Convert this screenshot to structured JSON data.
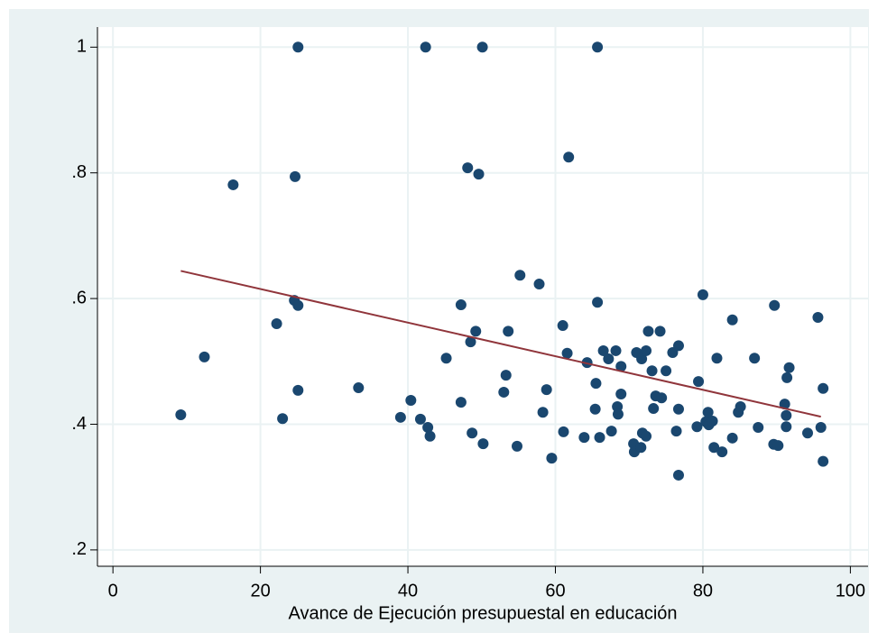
{
  "chart_data": {
    "type": "scatter",
    "x_label": "Avance de Ejecución presupuestal en educación",
    "xlim": [
      -2.1,
      102.4
    ],
    "ylim": [
      0.174,
      1.032
    ],
    "xticks": [
      0,
      20,
      40,
      60,
      80,
      100
    ],
    "yticks": [
      {
        "value": 0.2,
        "label": ".2"
      },
      {
        "value": 0.4,
        "label": ".4"
      },
      {
        "value": 0.6,
        "label": ".6"
      },
      {
        "value": 0.8,
        "label": ".8"
      },
      1
    ],
    "grid": true,
    "series": [
      {
        "type": "scatter",
        "color": "#1a476f",
        "x": [
          9.2,
          12.4,
          16.3,
          22.2,
          23.0,
          24.6,
          24.7,
          25.1,
          25.1,
          25.1,
          33.3,
          39.0,
          40.4,
          41.7,
          42.4,
          42.7,
          43.0,
          45.2,
          47.2,
          47.2,
          48.1,
          48.5,
          48.7,
          49.2,
          49.6,
          50.1,
          50.2,
          53.0,
          53.3,
          53.6,
          54.8,
          55.2,
          57.8,
          58.3,
          58.8,
          59.5,
          61.0,
          61.1,
          61.6,
          61.8,
          63.9,
          64.3,
          65.4,
          65.5,
          65.7,
          65.7,
          66.0,
          66.5,
          67.2,
          67.6,
          68.2,
          68.4,
          68.5,
          68.9,
          68.9,
          70.6,
          70.7,
          71.0,
          71.6,
          71.7,
          71.8,
          72.3,
          72.3,
          72.6,
          73.1,
          73.3,
          73.6,
          74.2,
          74.4,
          75.0,
          75.9,
          76.4,
          76.7,
          76.7,
          76.7,
          79.4,
          79.2,
          80.0,
          80.4,
          80.7,
          80.8,
          81.3,
          81.5,
          81.9,
          82.6,
          84.0,
          84.0,
          84.8,
          85.1,
          87.0,
          87.5,
          89.6,
          89.7,
          90.2,
          91.1,
          91.3,
          91.3,
          91.4,
          91.7,
          94.2,
          95.6,
          96.0,
          96.3,
          96.3
        ],
        "values": [
          0.415,
          0.507,
          0.781,
          0.56,
          0.409,
          0.597,
          0.794,
          1.0,
          0.589,
          0.454,
          0.458,
          0.411,
          0.438,
          0.408,
          1.0,
          0.395,
          0.381,
          0.505,
          0.59,
          0.435,
          0.808,
          0.531,
          0.386,
          0.548,
          0.798,
          1.0,
          0.369,
          0.451,
          0.478,
          0.548,
          0.365,
          0.637,
          0.623,
          0.419,
          0.455,
          0.346,
          0.557,
          0.388,
          0.513,
          0.825,
          0.379,
          0.498,
          0.424,
          0.465,
          1.0,
          0.594,
          0.379,
          0.517,
          0.504,
          0.389,
          0.517,
          0.428,
          0.416,
          0.448,
          0.492,
          0.369,
          0.356,
          0.514,
          0.363,
          0.504,
          0.386,
          0.517,
          0.381,
          0.548,
          0.485,
          0.425,
          0.445,
          0.548,
          0.442,
          0.485,
          0.514,
          0.389,
          0.525,
          0.424,
          0.319,
          0.468,
          0.396,
          0.606,
          0.404,
          0.419,
          0.399,
          0.405,
          0.363,
          0.505,
          0.356,
          0.378,
          0.566,
          0.419,
          0.428,
          0.505,
          0.395,
          0.368,
          0.589,
          0.366,
          0.432,
          0.414,
          0.396,
          0.474,
          0.49,
          0.386,
          0.57,
          0.395,
          0.457,
          0.341
        ]
      },
      {
        "type": "line",
        "color": "#90353b",
        "x": [
          9.2,
          96.0
        ],
        "values": [
          0.644,
          0.412
        ]
      }
    ]
  }
}
